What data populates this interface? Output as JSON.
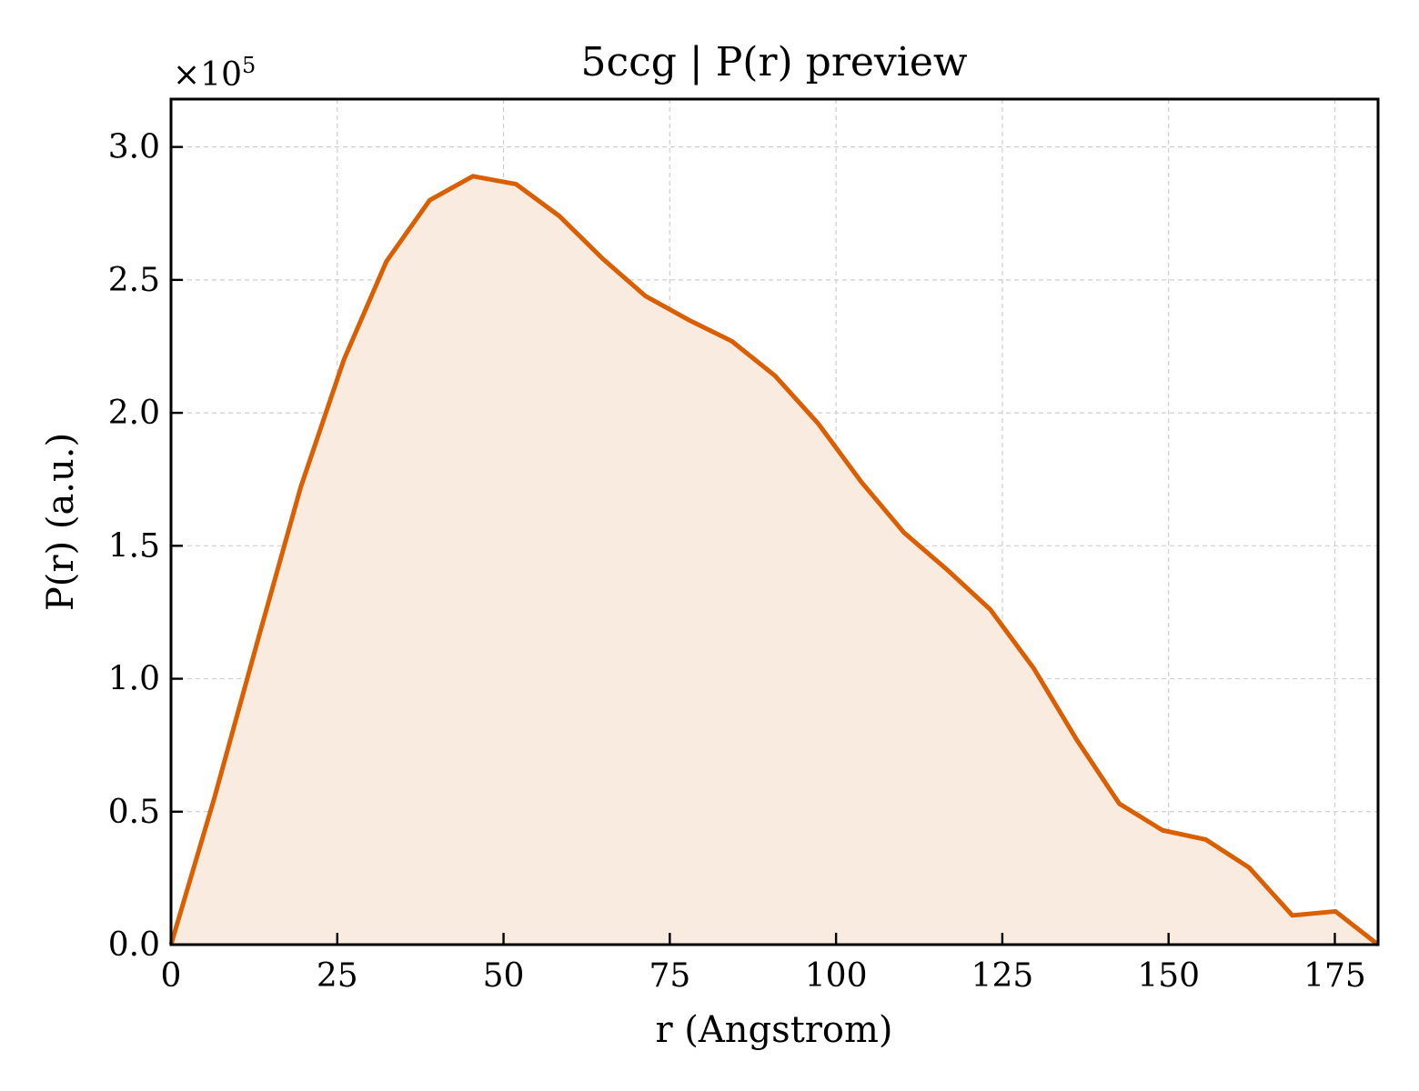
{
  "chart_data": {
    "type": "area",
    "title": "5ccg | P(r) preview",
    "xlabel": "r (Angstrom)",
    "ylabel": "P(r) (a.u.)",
    "y_multiplier_label": "×10",
    "y_multiplier_exp": "5",
    "xlim": [
      0,
      181.5
    ],
    "ylim": [
      0,
      3.18
    ],
    "grid": true,
    "xticks": [
      0,
      25,
      50,
      75,
      100,
      125,
      150,
      175
    ],
    "xtick_labels": [
      "0",
      "25",
      "50",
      "75",
      "100",
      "125",
      "150",
      "175"
    ],
    "yticks": [
      0,
      0.5,
      1.0,
      1.5,
      2.0,
      2.5,
      3.0
    ],
    "ytick_labels": [
      "0.0",
      "0.5",
      "1.0",
      "1.5",
      "2.0",
      "2.5",
      "3.0"
    ],
    "colors": {
      "line": "#d95f02",
      "fill": "#f9ebe0"
    },
    "series": [
      {
        "x": [
          0,
          6.5,
          13,
          19.5,
          26,
          32.4,
          38.9,
          45.4,
          51.9,
          58.4,
          64.9,
          71.3,
          77.8,
          84.3,
          90.8,
          97.3,
          103.8,
          110.2,
          116.7,
          123.2,
          129.7,
          136.2,
          142.6,
          149.1,
          155.6,
          162.1,
          168.6,
          175.1,
          181.5
        ],
        "y": [
          0,
          0.55,
          1.14,
          1.72,
          2.2,
          2.57,
          2.8,
          2.89,
          2.86,
          2.74,
          2.58,
          2.44,
          2.35,
          2.27,
          2.14,
          1.96,
          1.74,
          1.55,
          1.41,
          1.26,
          1.04,
          0.77,
          0.53,
          0.43,
          0.395,
          0.29,
          0.11,
          0.125,
          0
        ]
      }
    ]
  }
}
